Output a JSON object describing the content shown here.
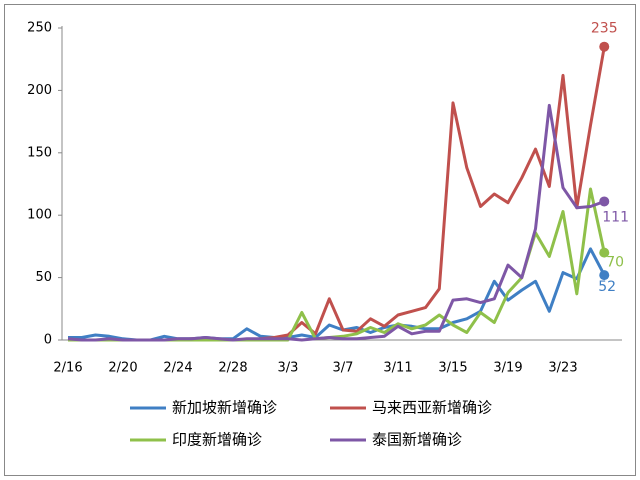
{
  "chart_data": {
    "type": "line",
    "categories": [
      "2/16",
      null,
      null,
      null,
      "2/20",
      null,
      null,
      null,
      "2/24",
      null,
      null,
      null,
      "2/28",
      null,
      null,
      null,
      "3/3",
      null,
      null,
      null,
      "3/7",
      null,
      null,
      null,
      "3/11",
      null,
      null,
      null,
      "3/15",
      null,
      null,
      null,
      "3/19",
      null,
      null,
      null,
      "3/23",
      null,
      null,
      null
    ],
    "ylim": [
      0,
      250
    ],
    "yticks": [
      0,
      50,
      100,
      150,
      200,
      250
    ],
    "series": [
      {
        "name": "新加坡新增确诊",
        "color": "#3f7fc4",
        "values": [
          2,
          2,
          4,
          3,
          1,
          0,
          0,
          3,
          1,
          1,
          2,
          1,
          1,
          9,
          3,
          2,
          2,
          4,
          2,
          12,
          8,
          10,
          6,
          10,
          12,
          11,
          9,
          9,
          14,
          17,
          23,
          47,
          32,
          40,
          47,
          23,
          54,
          49,
          73,
          52
        ]
      },
      {
        "name": "马来西亚新增确诊",
        "color": "#c0504d",
        "values": [
          0,
          0,
          0,
          0,
          0,
          0,
          0,
          0,
          0,
          1,
          0,
          0,
          0,
          0,
          1,
          2,
          4,
          14,
          5,
          33,
          8,
          7,
          17,
          11,
          20,
          23,
          26,
          41,
          190,
          138,
          107,
          117,
          110,
          130,
          153,
          123,
          212,
          106,
          172,
          235
        ]
      },
      {
        "name": "印度新增确诊",
        "color": "#8fc04a",
        "values": [
          0,
          0,
          0,
          0,
          0,
          0,
          0,
          0,
          0,
          0,
          0,
          0,
          0,
          0,
          0,
          0,
          0,
          22,
          1,
          2,
          3,
          5,
          10,
          6,
          13,
          9,
          12,
          20,
          12,
          6,
          22,
          14,
          38,
          50,
          86,
          67,
          103,
          37,
          121,
          70
        ]
      },
      {
        "name": "泰国新增确诊",
        "color": "#7e57a6",
        "values": [
          1,
          0,
          0,
          1,
          0,
          0,
          0,
          0,
          1,
          1,
          2,
          1,
          0,
          1,
          1,
          1,
          1,
          0,
          1,
          2,
          1,
          1,
          2,
          3,
          11,
          5,
          7,
          7,
          32,
          33,
          30,
          33,
          60,
          50,
          89,
          188,
          122,
          106,
          107,
          111
        ]
      }
    ]
  }
}
